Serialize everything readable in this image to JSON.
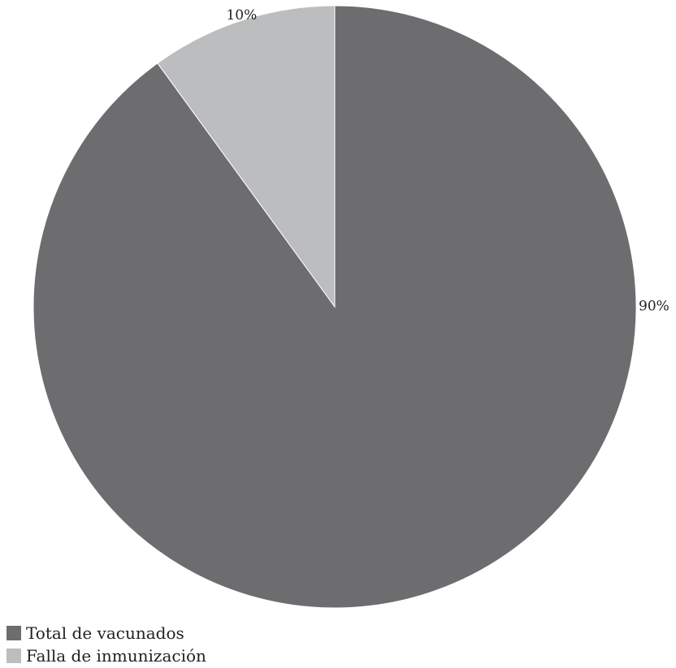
{
  "chart_data": {
    "type": "pie",
    "title": "",
    "slices": [
      {
        "label": "Total de vacunados",
        "value": 90,
        "value_label": "90%",
        "color": "#6d6d70"
      },
      {
        "label": "Falla de inmunización",
        "value": 10,
        "value_label": "10%",
        "color": "#bcbdbf"
      }
    ],
    "start_angle": "12 o'clock",
    "direction": "clockwise",
    "legend_position": "bottom-left"
  }
}
